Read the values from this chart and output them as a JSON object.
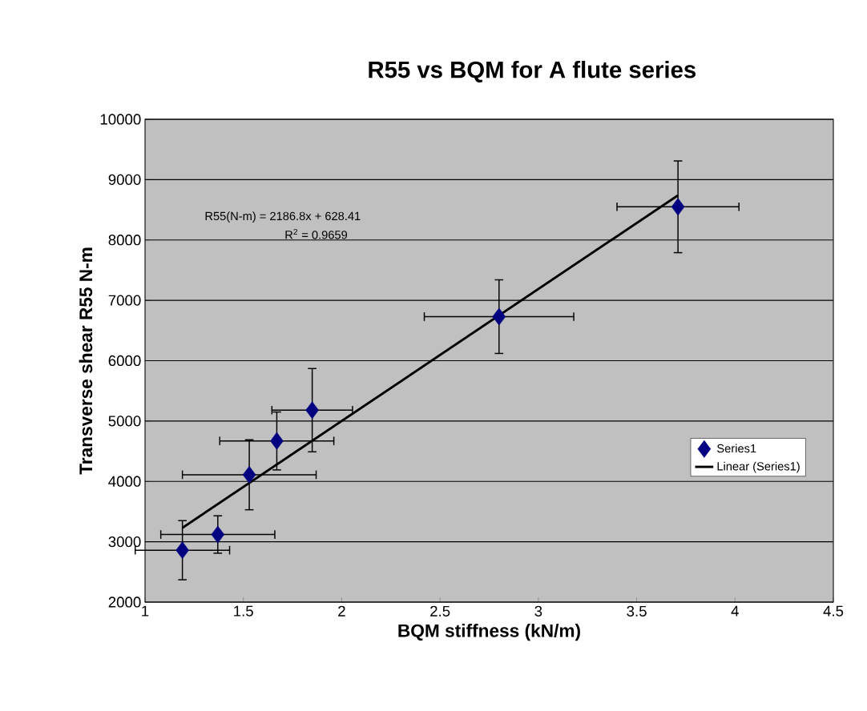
{
  "chart_data": {
    "type": "scatter",
    "title": "R55 vs BQM for A flute series",
    "xlabel": "BQM stiffness (kN/m)",
    "ylabel": "Transverse shear R55 N-m",
    "annotations": [
      "R55(N-m)  = 2186.8x + 628.41",
      "R$^{2}$ = 0.9659"
    ],
    "xlim": [
      1,
      4.5
    ],
    "xticks": [
      1,
      1.5,
      2,
      2.5,
      3,
      3.5,
      4,
      4.5
    ],
    "ylim": [
      2000,
      10000
    ],
    "yticks": [
      2000,
      3000,
      4000,
      5000,
      6000,
      7000,
      8000,
      9000,
      10000
    ],
    "grid": "y",
    "legend": "right",
    "marker": "diamond",
    "series": [
      {
        "name": "Series1",
        "color": "#000080",
        "x": [
          1.19,
          1.37,
          1.53,
          1.67,
          1.85,
          2.8,
          3.71
        ],
        "values": [
          2860,
          3120,
          4110,
          4670,
          5180,
          6730,
          8550
        ],
        "errors": [
          490,
          310,
          580,
          480,
          690,
          610,
          760
        ],
        "xerrors": [
          0.24,
          0.29,
          0.34,
          0.29,
          0.205,
          0.38,
          0.31
        ]
      },
      {
        "name": "Linear (Series1)",
        "type": "line",
        "color": "#000000",
        "line_style": "solid",
        "marker": "none",
        "x": [
          1.19,
          3.71
        ],
        "values": [
          3230,
          8740
        ]
      }
    ]
  }
}
